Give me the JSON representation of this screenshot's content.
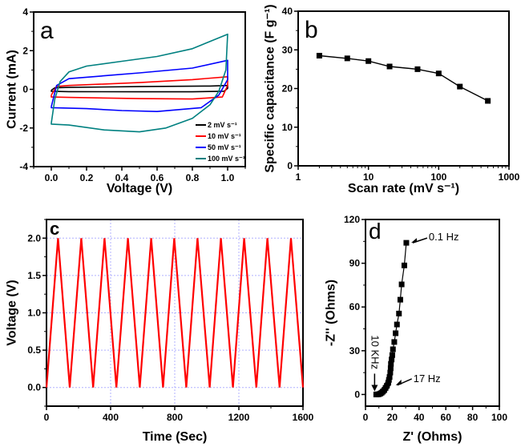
{
  "chart_data": [
    {
      "panel": "a",
      "type": "line",
      "panel_label": "a",
      "xlabel": "Voltage (V)",
      "ylabel": "Current (mA)",
      "xlim": [
        -0.1,
        1.1
      ],
      "ylim": [
        -4,
        4
      ],
      "xticks": [
        0.0,
        0.2,
        0.4,
        0.6,
        0.8,
        1.0
      ],
      "xtick_labels": [
        "0.0",
        "0.2",
        "0.4",
        "0.6",
        "0.8",
        "1.0"
      ],
      "yticks": [
        -4,
        -2,
        0,
        2,
        4
      ],
      "ytick_labels": [
        "-4",
        "-2",
        "0",
        "2",
        "4"
      ],
      "grid": false,
      "legend_position": "bottom-right",
      "series": [
        {
          "name": "2 mV s⁻¹",
          "color": "#000000",
          "points": [
            [
              0,
              -0.05
            ],
            [
              0.02,
              0.08
            ],
            [
              0.1,
              0.1
            ],
            [
              0.5,
              0.14
            ],
            [
              0.9,
              0.17
            ],
            [
              1.0,
              0.2
            ],
            [
              1.0,
              0.05
            ],
            [
              0.98,
              -0.1
            ],
            [
              0.8,
              -0.13
            ],
            [
              0.5,
              -0.13
            ],
            [
              0.1,
              -0.12
            ],
            [
              0,
              -0.1
            ],
            [
              0,
              -0.05
            ]
          ]
        },
        {
          "name": "10 mV s⁻¹",
          "color": "#ff0000",
          "points": [
            [
              0,
              -0.3
            ],
            [
              0.03,
              0.15
            ],
            [
              0.1,
              0.2
            ],
            [
              0.5,
              0.35
            ],
            [
              0.8,
              0.5
            ],
            [
              1.0,
              0.65
            ],
            [
              1.0,
              0.2
            ],
            [
              0.97,
              -0.4
            ],
            [
              0.8,
              -0.5
            ],
            [
              0.5,
              -0.48
            ],
            [
              0.1,
              -0.42
            ],
            [
              0,
              -0.4
            ],
            [
              0,
              -0.3
            ]
          ]
        },
        {
          "name": "50 mV s⁻¹",
          "color": "#0000ff",
          "points": [
            [
              0,
              -0.9
            ],
            [
              0.03,
              0.2
            ],
            [
              0.1,
              0.55
            ],
            [
              0.3,
              0.7
            ],
            [
              0.5,
              0.85
            ],
            [
              0.8,
              1.1
            ],
            [
              1.0,
              1.5
            ],
            [
              1.0,
              0.5
            ],
            [
              0.95,
              -0.3
            ],
            [
              0.85,
              -0.95
            ],
            [
              0.6,
              -1.15
            ],
            [
              0.4,
              -1.1
            ],
            [
              0.2,
              -1.0
            ],
            [
              0,
              -0.95
            ],
            [
              0,
              -0.9
            ]
          ]
        },
        {
          "name": "100 mV s⁻¹",
          "color": "#008080",
          "points": [
            [
              0,
              -1.75
            ],
            [
              0.02,
              -0.5
            ],
            [
              0.05,
              0.4
            ],
            [
              0.1,
              0.9
            ],
            [
              0.2,
              1.2
            ],
            [
              0.4,
              1.45
            ],
            [
              0.6,
              1.7
            ],
            [
              0.8,
              2.1
            ],
            [
              1.0,
              2.85
            ],
            [
              0.99,
              1.0
            ],
            [
              0.95,
              -0.1
            ],
            [
              0.9,
              -0.8
            ],
            [
              0.8,
              -1.5
            ],
            [
              0.65,
              -2.0
            ],
            [
              0.5,
              -2.2
            ],
            [
              0.3,
              -2.1
            ],
            [
              0.1,
              -1.85
            ],
            [
              0,
              -1.8
            ],
            [
              0,
              -1.75
            ]
          ]
        }
      ]
    },
    {
      "panel": "b",
      "type": "line",
      "panel_label": "b",
      "xlabel": "Scan rate (mV s⁻¹)",
      "ylabel": "Specific capacitance (F g⁻¹)",
      "xscale": "log",
      "xlim": [
        1,
        1000
      ],
      "ylim": [
        0,
        40
      ],
      "xticks": [
        1,
        10,
        100,
        1000
      ],
      "xtick_labels": [
        "1",
        "10",
        "100",
        "1000"
      ],
      "yticks": [
        0,
        10,
        20,
        30,
        40
      ],
      "ytick_labels": [
        "0",
        "10",
        "20",
        "30",
        "40"
      ],
      "grid": false,
      "marker": "square",
      "color": "#000000",
      "x": [
        2,
        5,
        10,
        20,
        50,
        100,
        200,
        500
      ],
      "y": [
        28.5,
        27.8,
        27.1,
        25.7,
        25.0,
        23.9,
        20.5,
        16.8
      ]
    },
    {
      "panel": "c",
      "type": "line",
      "panel_label": "c",
      "xlabel": "Time (Sec)",
      "ylabel": "Voltage (V)",
      "xlim": [
        0,
        1600
      ],
      "ylim": [
        -0.25,
        2.25
      ],
      "xticks": [
        0,
        400,
        800,
        1200,
        1600
      ],
      "xtick_labels": [
        "0",
        "400",
        "800",
        "1200",
        "1600"
      ],
      "yticks": [
        0.0,
        0.5,
        1.0,
        1.5,
        2.0
      ],
      "ytick_labels": [
        "0.0",
        "0.5",
        "1.0",
        "1.5",
        "2.0"
      ],
      "grid": true,
      "grid_color": "#b0b0ff",
      "color": "#ff0000",
      "x": [
        0,
        72,
        145,
        217,
        291,
        362,
        436,
        508,
        582,
        653,
        727,
        797,
        872,
        942,
        1018,
        1088,
        1163,
        1233,
        1309,
        1378,
        1454,
        1525,
        1600
      ],
      "y": [
        0,
        2,
        0,
        2,
        0,
        2,
        0,
        2,
        0,
        2,
        0,
        2,
        0,
        2,
        0,
        2,
        0,
        2,
        0,
        2,
        0,
        2,
        0
      ]
    },
    {
      "panel": "d",
      "type": "scatter",
      "panel_label": "d",
      "xlabel": "Z' (Ohms)",
      "ylabel": "-Z'' (Ohms)",
      "xlim": [
        0,
        100
      ],
      "ylim": [
        -8,
        120
      ],
      "xticks": [
        0,
        20,
        40,
        60,
        80,
        100
      ],
      "xtick_labels": [
        "0",
        "20",
        "40",
        "60",
        "80",
        "100"
      ],
      "yticks": [
        0,
        30,
        60,
        90,
        120
      ],
      "ytick_labels": [
        "0",
        "30",
        "60",
        "90",
        "120"
      ],
      "grid": false,
      "marker": "square",
      "color": "#000000",
      "x": [
        8,
        9,
        10,
        11,
        12,
        13,
        14,
        15,
        16,
        17,
        17.5,
        18,
        18.5,
        18.8,
        19,
        19.5,
        20,
        20.5,
        21.5,
        22.5,
        23.5,
        25,
        26,
        27,
        29,
        30.5
      ],
      "y": [
        0,
        0.05,
        0.2,
        0.6,
        1.2,
        2,
        3,
        4.5,
        6,
        8,
        10,
        12,
        15,
        18,
        21,
        24,
        27,
        31,
        36,
        42,
        48,
        55.5,
        65,
        75.5,
        88.5,
        104
      ],
      "annotations": [
        {
          "text": "0.1 Hz",
          "x": 30.5,
          "y": 104
        },
        {
          "text": "17 Hz",
          "x": 19,
          "y": 8
        },
        {
          "text": "10 KHz",
          "x": 8,
          "y": 0
        }
      ]
    }
  ]
}
